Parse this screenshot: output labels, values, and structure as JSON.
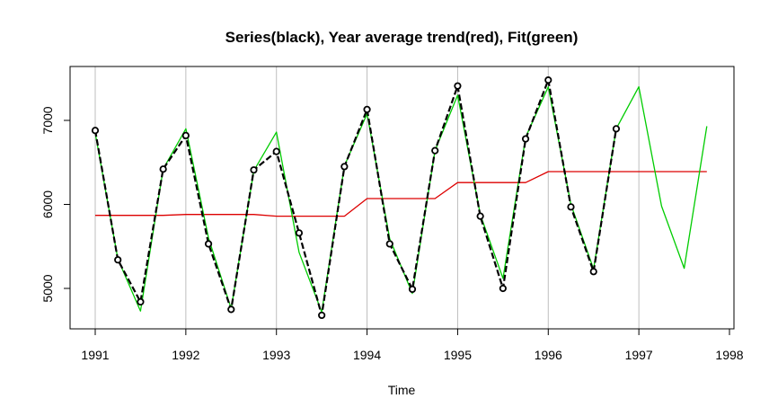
{
  "chart_data": {
    "type": "line",
    "title": "Series(black), Year average trend(red), Fit(green)",
    "xlabel": "Time",
    "ylabel": "",
    "xlim": [
      1991,
      1998
    ],
    "ylim": [
      4500,
      7600
    ],
    "x_ticks": [
      1991,
      1992,
      1993,
      1994,
      1995,
      1996,
      1997,
      1998
    ],
    "x_tick_labels": [
      "1991",
      "1992",
      "1993",
      "1994",
      "1995",
      "1996",
      "1997",
      "1998"
    ],
    "y_ticks": [
      5000,
      6000,
      7000
    ],
    "y_tick_labels": [
      "5000",
      "6000",
      "7000"
    ],
    "grid": "vertical",
    "colors": {
      "series": "#000000",
      "trend": "#dd0000",
      "fit": "#00cc00",
      "grid": "#bebebe"
    },
    "series": [
      {
        "key": "series",
        "style": "dashed-with-points",
        "x": [
          1991.0,
          1991.25,
          1991.5,
          1991.75,
          1992.0,
          1992.25,
          1992.5,
          1992.75,
          1993.0,
          1993.25,
          1993.5,
          1993.75,
          1994.0,
          1994.25,
          1994.5,
          1994.75,
          1995.0,
          1995.25,
          1995.5,
          1995.75,
          1996.0,
          1996.25,
          1996.5,
          1996.75
        ],
        "values": [
          6880,
          5340,
          4840,
          6420,
          6820,
          5530,
          4750,
          6410,
          6630,
          5660,
          4680,
          6450,
          7130,
          5530,
          4990,
          6640,
          7410,
          5860,
          5000,
          6780,
          7480,
          5970,
          5200,
          6900
        ]
      },
      {
        "key": "trend",
        "style": "line",
        "x": [
          1991.0,
          1991.25,
          1991.5,
          1991.75,
          1992.0,
          1992.25,
          1992.5,
          1992.75,
          1993.0,
          1993.25,
          1993.5,
          1993.75,
          1994.0,
          1994.25,
          1994.5,
          1994.75,
          1995.0,
          1995.25,
          1995.5,
          1995.75,
          1996.0,
          1996.25,
          1996.5,
          1996.75,
          1997.0,
          1997.25,
          1997.5,
          1997.75
        ],
        "values": [
          5870,
          5870,
          5870,
          5870,
          5880,
          5880,
          5880,
          5880,
          5860,
          5860,
          5860,
          5860,
          6070,
          6070,
          6070,
          6070,
          6260,
          6260,
          6260,
          6260,
          6390,
          6390,
          6390,
          6390,
          6390,
          6390,
          6390,
          6390
        ]
      },
      {
        "key": "fit",
        "style": "line",
        "x": [
          1991.0,
          1991.25,
          1991.5,
          1991.75,
          1992.0,
          1992.25,
          1992.5,
          1992.75,
          1993.0,
          1993.25,
          1993.5,
          1993.75,
          1994.0,
          1994.25,
          1994.5,
          1994.75,
          1995.0,
          1995.25,
          1995.5,
          1995.75,
          1996.0,
          1996.25,
          1996.5,
          1996.75,
          1997.0,
          1997.25,
          1997.5,
          1997.75
        ],
        "values": [
          6850,
          5350,
          4730,
          6420,
          6900,
          5600,
          4760,
          6400,
          6860,
          5430,
          4720,
          6460,
          7080,
          5590,
          4940,
          6640,
          7300,
          5880,
          5120,
          6800,
          7400,
          6000,
          5230,
          6900,
          7400,
          5980,
          5240,
          6930
        ]
      }
    ]
  }
}
